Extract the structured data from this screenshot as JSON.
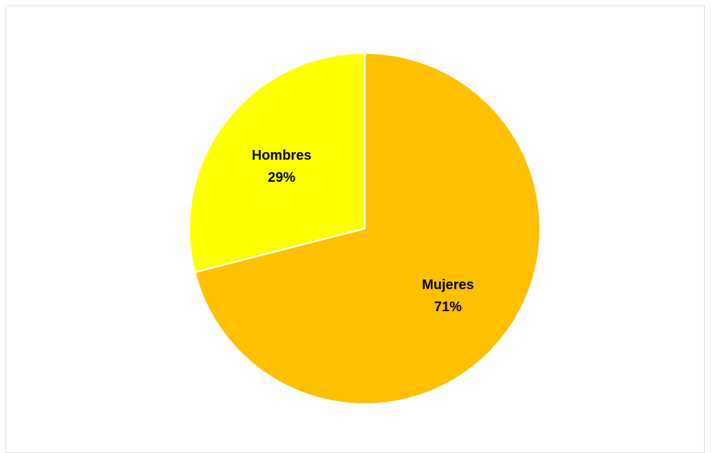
{
  "chart_data": {
    "type": "pie",
    "title": "",
    "legend": "none",
    "categories": [
      "Mujeres",
      "Hombres"
    ],
    "values": [
      71,
      29
    ],
    "value_labels": [
      "71%",
      "29%"
    ],
    "colors": [
      "#FFC000",
      "#FFFF00"
    ]
  }
}
